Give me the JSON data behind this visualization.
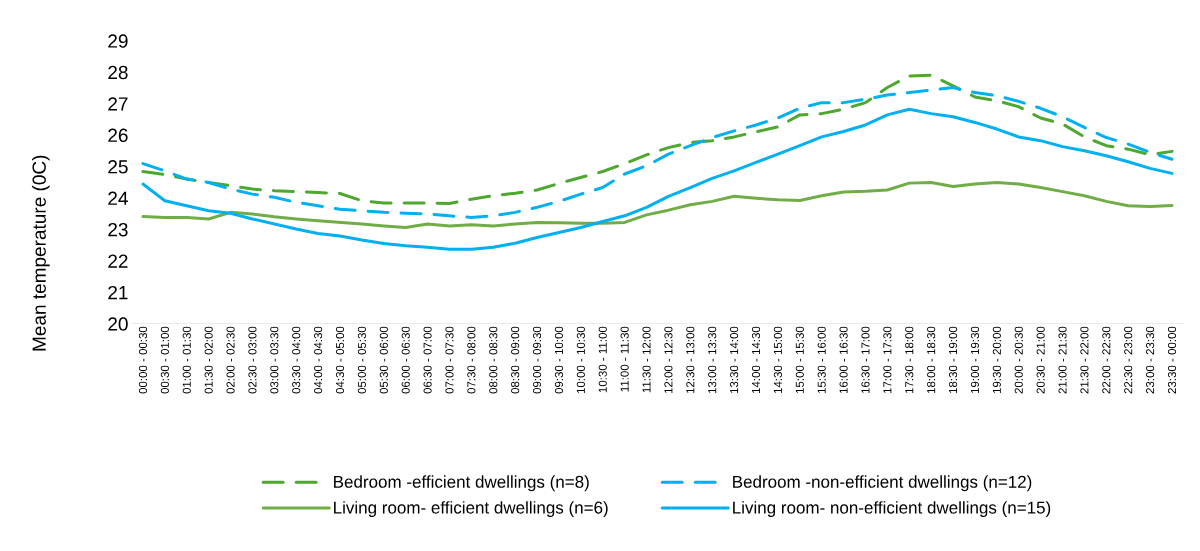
{
  "chart_data": {
    "type": "line",
    "ylabel": "Mean temperature (0C)",
    "categories": [
      "00:00 - 00:30",
      "00:30 - 01:00",
      "01:00 - 01:30",
      "01:30 - 02:00",
      "02:00 - 02:30",
      "02:30 - 03:00",
      "03:00 - 03:30",
      "03:30 - 04:00",
      "04:00 - 04:30",
      "04:30 - 05:00",
      "05:00 - 05:30",
      "05:30 - 06:00",
      "06:00 - 06:30",
      "06:30 - 07:00",
      "07:00 - 07:30",
      "07:30 - 08:00",
      "08:00 - 08:30",
      "08:30 - 09:00",
      "09:00 - 09:30",
      "09:30 - 10:00",
      "10:00 - 10:30",
      "10:30 - 11:00",
      "11:00 - 11:30",
      "11:30 - 12:00",
      "12:00 - 12:30",
      "12:30 - 13:00",
      "13:00 - 13:30",
      "13:30 - 14:00",
      "14:00 - 14:30",
      "14:30 - 15:00",
      "15:00 - 15:30",
      "15:30 - 16:00",
      "16:00 - 16:30",
      "16:30 - 17:00",
      "17:00 - 17:30",
      "17:30 - 18:00",
      "18:00 - 18:30",
      "18:30 - 19:00",
      "19:00 - 19:30",
      "19:30 - 20:00",
      "20:00 - 20:30",
      "20:30 - 21:00",
      "21:00 - 21:30",
      "21:30 - 22:00",
      "22:00 - 22:30",
      "22:30 - 23:00",
      "23:00 - 23:30",
      "23:30 - 00:00"
    ],
    "series": [
      {
        "name": "Bedroom -efficient dwellings (n=8)",
        "color": "#4ea72e",
        "line_style": "dashed",
        "values": [
          24.85,
          24.75,
          24.61,
          24.5,
          24.4,
          24.29,
          24.24,
          24.21,
          24.18,
          24.15,
          23.92,
          23.85,
          23.85,
          23.85,
          23.83,
          23.97,
          24.08,
          24.16,
          24.26,
          24.47,
          24.66,
          24.85,
          25.1,
          25.38,
          25.61,
          25.77,
          25.83,
          25.95,
          26.11,
          26.27,
          26.65,
          26.69,
          26.83,
          27.04,
          27.52,
          27.89,
          27.91,
          27.57,
          27.22,
          27.1,
          26.91,
          26.55,
          26.36,
          25.95,
          25.67,
          25.56,
          25.38,
          25.49
        ]
      },
      {
        "name": "Bedroom -non-efficient dwellings (n=12)",
        "color": "#00b0f0",
        "line_style": "dashed",
        "values": [
          25.1,
          24.87,
          24.61,
          24.5,
          24.29,
          24.13,
          24.03,
          23.87,
          23.76,
          23.65,
          23.6,
          23.55,
          23.52,
          23.5,
          23.44,
          23.39,
          23.44,
          23.55,
          23.71,
          23.9,
          24.13,
          24.34,
          24.77,
          25.03,
          25.4,
          25.67,
          25.93,
          26.14,
          26.33,
          26.55,
          26.86,
          27.04,
          27.04,
          27.15,
          27.28,
          27.36,
          27.44,
          27.52,
          27.36,
          27.26,
          27.08,
          26.86,
          26.59,
          26.25,
          25.93,
          25.72,
          25.46,
          25.24
        ]
      },
      {
        "name": "Living room- efficient dwellings (n=6)",
        "color": "#70ad47",
        "line_style": "solid",
        "values": [
          23.42,
          23.39,
          23.39,
          23.34,
          23.55,
          23.5,
          23.41,
          23.34,
          23.28,
          23.23,
          23.18,
          23.12,
          23.07,
          23.18,
          23.12,
          23.16,
          23.12,
          23.18,
          23.23,
          23.22,
          23.2,
          23.2,
          23.23,
          23.47,
          23.62,
          23.79,
          23.9,
          24.06,
          24.0,
          23.95,
          23.93,
          24.08,
          24.2,
          24.22,
          24.26,
          24.48,
          24.5,
          24.37,
          24.45,
          24.5,
          24.45,
          24.34,
          24.21,
          24.08,
          23.9,
          23.76,
          23.74,
          23.77
        ]
      },
      {
        "name": "Living room- non-efficient dwellings (n=15)",
        "color": "#00b0f0",
        "line_style": "solid",
        "values": [
          24.45,
          23.92,
          23.76,
          23.6,
          23.52,
          23.34,
          23.18,
          23.02,
          22.88,
          22.8,
          22.67,
          22.56,
          22.49,
          22.44,
          22.38,
          22.38,
          22.44,
          22.57,
          22.75,
          22.91,
          23.07,
          23.26,
          23.44,
          23.71,
          24.06,
          24.34,
          24.63,
          24.87,
          25.14,
          25.4,
          25.67,
          25.95,
          26.12,
          26.33,
          26.65,
          26.83,
          26.69,
          26.59,
          26.41,
          26.2,
          25.95,
          25.83,
          25.64,
          25.51,
          25.35,
          25.16,
          24.95,
          24.79
        ]
      }
    ],
    "ylim": [
      20,
      29
    ],
    "yticks": [
      20,
      21,
      22,
      23,
      24,
      25,
      26,
      27,
      28,
      29
    ],
    "legend": "bottom"
  }
}
